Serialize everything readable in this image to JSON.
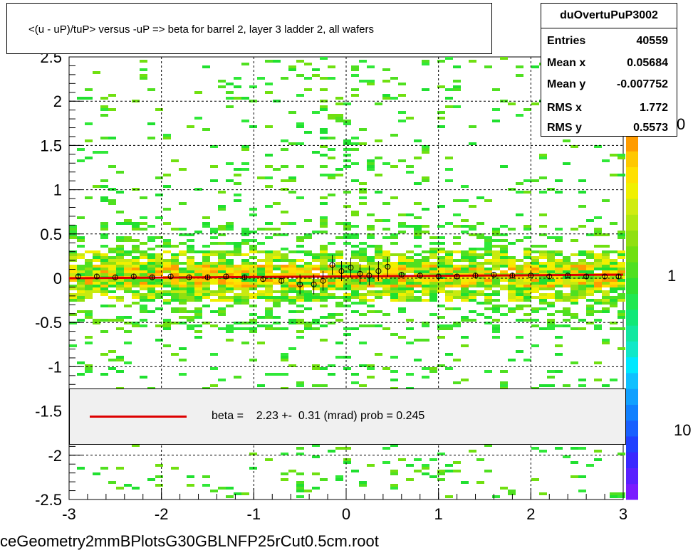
{
  "title": "<(u - uP)/tuP> versus  -uP => beta for barrel 2, layer 3 ladder 2, all wafers",
  "stats": {
    "name": "duOvertuPuP3002",
    "rows": [
      {
        "label": "Entries",
        "value": "40559"
      },
      {
        "label": "Mean x",
        "value": "0.05684"
      },
      {
        "label": "Mean y",
        "value": "-0.007752"
      },
      {
        "label": "RMS x",
        "value": "1.772"
      },
      {
        "label": "RMS y",
        "value": "0.5573"
      }
    ]
  },
  "legend": {
    "text": "beta =    2.23 +-  0.31 (mrad) prob = 0.245",
    "line_color": "#dd0000"
  },
  "footer": "ceGeometry2mmBPlotsG30GBLNFP25rCut0.5cm.root",
  "colorbar": {
    "labels": [
      "1",
      "10"
    ],
    "partial_label": "0",
    "palette": [
      "#7a1cff",
      "#5a20ff",
      "#3a28ff",
      "#2040ff",
      "#1860ff",
      "#1080ff",
      "#10a0ff",
      "#10c0ff",
      "#00e8ff",
      "#10e8c8",
      "#10e8a0",
      "#10e878",
      "#20e850",
      "#30e030",
      "#50e020",
      "#70e010",
      "#90e010",
      "#b0e810",
      "#d0ec10",
      "#f0f000",
      "#ffe000",
      "#ffc800",
      "#ff9c00"
    ]
  },
  "chart_data": {
    "type": "heatmap",
    "title": "<(u - uP)/tuP> versus  -uP => beta for barrel 2, layer 3 ladder 2, all wafers",
    "xlabel": "",
    "ylabel": "",
    "xlim": [
      -3,
      3
    ],
    "ylim": [
      -2.5,
      2.5
    ],
    "x_ticks": [
      "-3",
      "-2",
      "-1",
      "0",
      "1",
      "2",
      "3"
    ],
    "y_ticks": [
      "-2.5",
      "-2",
      "-1.5",
      "-1",
      "-0.5",
      "0",
      "0.5",
      "1",
      "1.5",
      "2",
      "2.5"
    ],
    "grid": true,
    "profile_points": [
      {
        "x": -2.9,
        "y": 0.02
      },
      {
        "x": -2.7,
        "y": 0.02
      },
      {
        "x": -2.5,
        "y": 0.01
      },
      {
        "x": -2.3,
        "y": 0.02
      },
      {
        "x": -2.1,
        "y": 0.01
      },
      {
        "x": -1.9,
        "y": 0.02
      },
      {
        "x": -1.7,
        "y": 0.01
      },
      {
        "x": -1.5,
        "y": 0.01
      },
      {
        "x": -1.3,
        "y": 0.02
      },
      {
        "x": -1.1,
        "y": 0.01
      },
      {
        "x": -0.9,
        "y": -0.01
      },
      {
        "x": -0.7,
        "y": -0.03
      },
      {
        "x": -0.5,
        "y": -0.07
      },
      {
        "x": -0.35,
        "y": -0.07
      },
      {
        "x": -0.25,
        "y": -0.03
      },
      {
        "x": -0.15,
        "y": 0.15
      },
      {
        "x": -0.05,
        "y": 0.08
      },
      {
        "x": 0.05,
        "y": 0.12
      },
      {
        "x": 0.15,
        "y": 0.05
      },
      {
        "x": 0.25,
        "y": 0.03
      },
      {
        "x": 0.35,
        "y": 0.08
      },
      {
        "x": 0.45,
        "y": 0.13
      },
      {
        "x": 0.6,
        "y": 0.04
      },
      {
        "x": 0.8,
        "y": 0.03
      },
      {
        "x": 1.0,
        "y": 0.02
      },
      {
        "x": 1.2,
        "y": 0.02
      },
      {
        "x": 1.4,
        "y": 0.03
      },
      {
        "x": 1.6,
        "y": 0.04
      },
      {
        "x": 1.8,
        "y": 0.03
      },
      {
        "x": 2.0,
        "y": 0.03
      },
      {
        "x": 2.2,
        "y": 0.02
      },
      {
        "x": 2.4,
        "y": 0.03
      },
      {
        "x": 2.6,
        "y": 0.02
      },
      {
        "x": 2.8,
        "y": 0.02
      },
      {
        "x": 2.95,
        "y": 0.02
      }
    ],
    "fit_line": {
      "x": [
        -3,
        3
      ],
      "y": [
        0.0,
        0.04
      ]
    }
  }
}
